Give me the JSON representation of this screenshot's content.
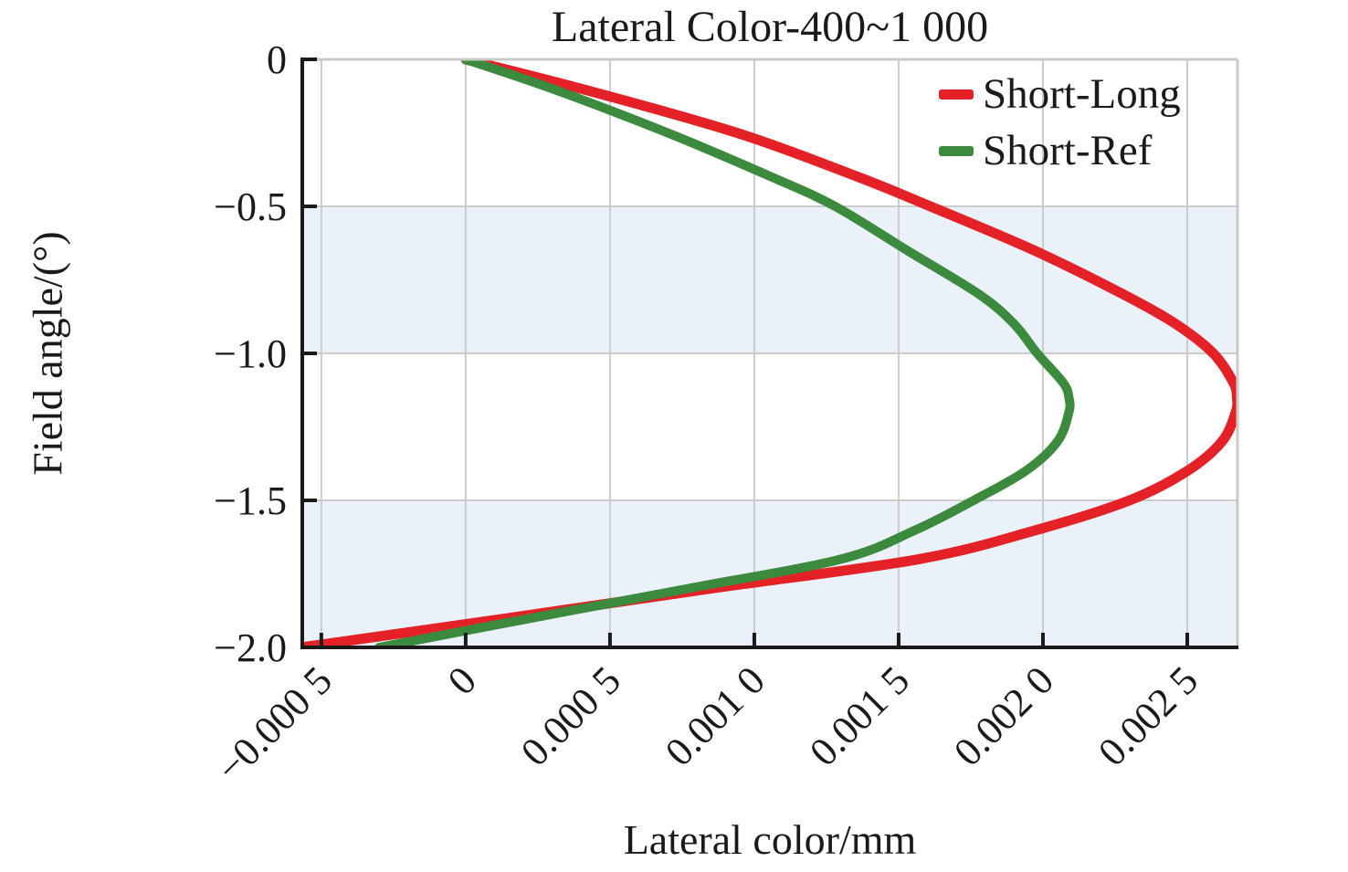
{
  "title": "Lateral Color-400~1 000",
  "chart_data": {
    "type": "line",
    "title": "Lateral Color-400~1 000",
    "xlabel": "Lateral color/mm",
    "ylabel": "Field angle/(°)",
    "xlim": [
      -0.000566,
      0.002674
    ],
    "ylim": [
      -2.0,
      0
    ],
    "x_ticks": [
      -0.0005,
      0,
      0.0005,
      0.001,
      0.0015,
      0.002,
      0.0025
    ],
    "x_tick_labels": [
      "−0.000 5",
      "0",
      "0.000 5",
      "0.001 0",
      "0.001 5",
      "0.002 0",
      "0.002 5"
    ],
    "y_ticks": [
      0,
      -0.5,
      -1.0,
      -1.5,
      -2.0
    ],
    "y_tick_labels": [
      "0",
      "−0.5",
      "−1.0",
      "−1.5",
      "−2.0"
    ],
    "grid": true,
    "legend_position": "top-right",
    "bands": [
      {
        "from": -0.5,
        "to": -1.0
      },
      {
        "from": -1.5,
        "to": -2.0
      }
    ],
    "colors": {
      "band": "#eaf1f9",
      "grid": "#cccccc",
      "spine_dark": "#1a1a1a",
      "spine_light": "#c9c9c9",
      "text": "#1a1a1a"
    },
    "series": [
      {
        "name": "Short-Long",
        "color": "#e32126",
        "line_width": 11,
        "points": [
          [
            0,
            0
          ],
          [
            -0.1,
            0.0004
          ],
          [
            -0.25,
            0.00094
          ],
          [
            -0.4,
            0.00136
          ],
          [
            -0.5,
            0.00161
          ],
          [
            -0.65,
            0.00197
          ],
          [
            -0.8,
            0.00228
          ],
          [
            -0.9,
            0.00246
          ],
          [
            -1.0,
            0.00259
          ],
          [
            -1.1,
            0.00266
          ],
          [
            -1.15,
            0.002672
          ],
          [
            -1.2,
            0.002668
          ],
          [
            -1.3,
            0.00262
          ],
          [
            -1.4,
            0.0025
          ],
          [
            -1.5,
            0.0023
          ],
          [
            -1.6,
            0.00198
          ],
          [
            -1.7,
            0.00157
          ],
          [
            -1.8,
            0.00085
          ],
          [
            -1.9,
            0.00015
          ],
          [
            -2.0,
            -0.00057
          ]
        ]
      },
      {
        "name": "Short-Ref",
        "color": "#3b8a3e",
        "line_width": 10,
        "points": [
          [
            0,
            0
          ],
          [
            -0.1,
            0.0003
          ],
          [
            -0.25,
            0.0007
          ],
          [
            -0.4,
            0.00106
          ],
          [
            -0.5,
            0.00128
          ],
          [
            -0.65,
            0.00153
          ],
          [
            -0.8,
            0.00178
          ],
          [
            -0.9,
            0.0019
          ],
          [
            -1.0,
            0.00198
          ],
          [
            -1.1,
            0.00207
          ],
          [
            -1.15,
            0.00209
          ],
          [
            -1.2,
            0.00209
          ],
          [
            -1.3,
            0.00205
          ],
          [
            -1.4,
            0.00194
          ],
          [
            -1.5,
            0.00176
          ],
          [
            -1.6,
            0.00156
          ],
          [
            -1.7,
            0.0013
          ],
          [
            -1.8,
            0.00077
          ],
          [
            -1.9,
            0.00023
          ],
          [
            -2.0,
            -0.0003
          ]
        ]
      }
    ]
  }
}
